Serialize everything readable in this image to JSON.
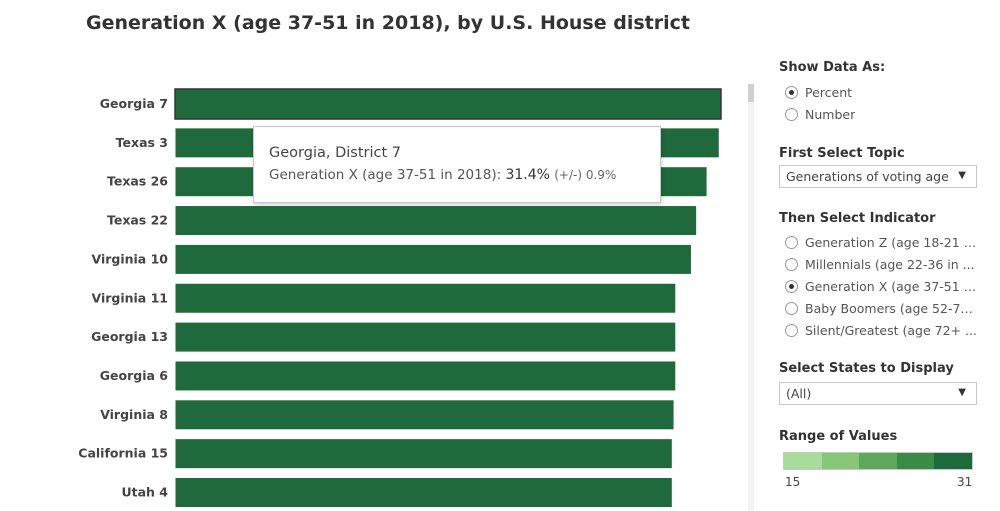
{
  "title": "Generation X (age 37-51 in 2018), by U.S. House district",
  "chart_data": {
    "type": "bar",
    "orientation": "horizontal",
    "title": "Generation X (age 37-51 in 2018), by U.S. House district",
    "categories": [
      "Georgia 7",
      "Texas 3",
      "Texas 26",
      "Texas 22",
      "Virginia 10",
      "Virginia 11",
      "Georgia 13",
      "Georgia 6",
      "Virginia 8",
      "California 15",
      "Utah 4"
    ],
    "values": [
      31.4,
      31.3,
      30.6,
      30.0,
      29.7,
      28.8,
      28.8,
      28.8,
      28.7,
      28.6,
      28.6
    ],
    "xlim": [
      0,
      32
    ],
    "bar_color": "#1e6a3c",
    "highlight_border_color": "#333333"
  },
  "tooltip": {
    "title": "Georgia, District 7",
    "label": "Generation X (age 37-51 in 2018): ",
    "value": "31.4%",
    "moe": "(+/-) 0.9%"
  },
  "panel": {
    "show_data_as": {
      "heading": "Show Data As:",
      "options": [
        "Percent",
        "Number"
      ],
      "selected": "Percent"
    },
    "topic": {
      "heading": "First Select Topic",
      "value": "Generations of voting age"
    },
    "indicator": {
      "heading": "Then Select Indicator",
      "options": [
        "Generation Z (age 18-21 i...",
        "Millennials (age 22-36 in ...",
        "Generation X (age 37-51 i...",
        "Baby Boomers (age 52-71...",
        "Silent/Greatest (age 72+ ..."
      ],
      "selected": "Generation X (age 37-51 i..."
    },
    "states": {
      "heading": "Select States to Display",
      "value": "(All)"
    },
    "range": {
      "heading": "Range of Values",
      "min": "15",
      "max": "31",
      "colors": [
        "#a9dc9a",
        "#86c777",
        "#5ea85b",
        "#3a8a48",
        "#1e6a3c"
      ]
    }
  }
}
